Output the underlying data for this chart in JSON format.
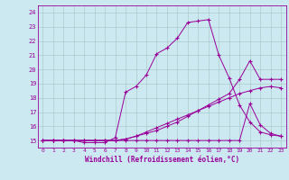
{
  "xlabel": "Windchill (Refroidissement éolien,°C)",
  "background_color": "#cce8f0",
  "line_color": "#990099",
  "grid_color": "#aacccc",
  "xlim": [
    -0.5,
    23.5
  ],
  "ylim": [
    14.5,
    24.5
  ],
  "xticks": [
    0,
    1,
    2,
    3,
    4,
    5,
    6,
    7,
    8,
    9,
    10,
    11,
    12,
    13,
    14,
    15,
    16,
    17,
    18,
    19,
    20,
    21,
    22,
    23
  ],
  "yticks": [
    15,
    16,
    17,
    18,
    19,
    20,
    21,
    22,
    23,
    24
  ],
  "lines": [
    {
      "x": [
        0,
        1,
        2,
        3,
        4,
        5,
        6,
        7,
        8,
        9,
        10,
        11,
        12,
        13,
        14,
        15,
        16,
        17,
        18,
        19,
        20,
        21,
        22,
        23
      ],
      "y": [
        15.0,
        15.0,
        15.0,
        15.0,
        14.85,
        14.85,
        14.85,
        15.2,
        18.4,
        18.8,
        19.6,
        21.1,
        21.5,
        22.2,
        23.3,
        23.4,
        23.5,
        21.0,
        19.4,
        17.5,
        16.3,
        15.6,
        15.4,
        15.3
      ]
    },
    {
      "x": [
        0,
        1,
        2,
        3,
        4,
        5,
        6,
        7,
        8,
        9,
        10,
        11,
        12,
        13,
        14,
        15,
        16,
        17,
        18,
        19,
        20,
        21,
        22,
        23
      ],
      "y": [
        15.0,
        15.0,
        15.0,
        15.0,
        15.0,
        15.0,
        15.0,
        15.0,
        15.0,
        15.0,
        15.0,
        15.0,
        15.0,
        15.0,
        15.0,
        15.0,
        15.0,
        15.0,
        15.0,
        15.0,
        17.6,
        16.1,
        15.5,
        15.3
      ]
    },
    {
      "x": [
        0,
        1,
        2,
        3,
        4,
        5,
        6,
        7,
        8,
        9,
        10,
        11,
        12,
        13,
        14,
        15,
        16,
        17,
        18,
        19,
        20,
        21,
        22,
        23
      ],
      "y": [
        15.0,
        15.0,
        15.0,
        15.0,
        15.0,
        15.0,
        15.0,
        15.0,
        15.1,
        15.3,
        15.5,
        15.7,
        16.0,
        16.3,
        16.7,
        17.1,
        17.5,
        17.9,
        18.3,
        19.3,
        20.6,
        19.3,
        19.3,
        19.3
      ]
    },
    {
      "x": [
        0,
        1,
        2,
        3,
        4,
        5,
        6,
        7,
        8,
        9,
        10,
        11,
        12,
        13,
        14,
        15,
        16,
        17,
        18,
        19,
        20,
        21,
        22,
        23
      ],
      "y": [
        15.0,
        15.0,
        15.0,
        15.0,
        15.0,
        15.0,
        15.0,
        15.0,
        15.1,
        15.3,
        15.6,
        15.9,
        16.2,
        16.5,
        16.8,
        17.1,
        17.4,
        17.7,
        18.0,
        18.3,
        18.5,
        18.7,
        18.8,
        18.7
      ]
    }
  ]
}
